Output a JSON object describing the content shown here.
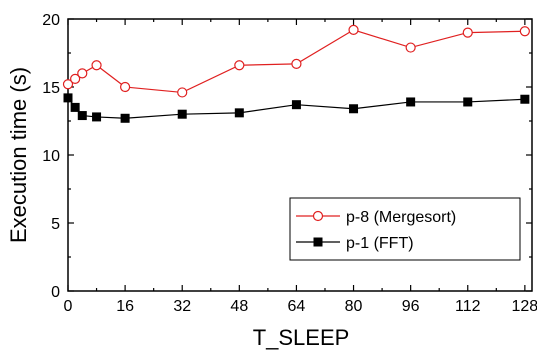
{
  "chart_data": {
    "type": "line",
    "title": "",
    "xlabel": "T_SLEEP",
    "ylabel": "Execution time (s)",
    "xlim": [
      0,
      130
    ],
    "ylim": [
      0,
      20
    ],
    "xticks": [
      0,
      16,
      32,
      48,
      64,
      80,
      96,
      112,
      128
    ],
    "yticks": [
      0,
      5,
      10,
      15,
      20
    ],
    "grid": false,
    "legend_position": "bottom-right",
    "series": [
      {
        "name": "p-8 (Mergesort)",
        "color": "#e02020",
        "marker": "open-circle",
        "x": [
          0,
          2,
          4,
          8,
          16,
          32,
          48,
          64,
          80,
          96,
          112,
          128
        ],
        "y": [
          15.2,
          15.6,
          16.0,
          16.6,
          15.0,
          14.6,
          16.6,
          16.7,
          19.2,
          17.9,
          19.0,
          19.1
        ]
      },
      {
        "name": "p-1 (FFT)",
        "color": "#000000",
        "marker": "filled-square",
        "x": [
          0,
          2,
          4,
          8,
          16,
          32,
          48,
          64,
          80,
          96,
          112,
          128
        ],
        "y": [
          14.2,
          13.5,
          12.9,
          12.8,
          12.7,
          13.0,
          13.1,
          13.7,
          13.4,
          13.9,
          13.9,
          14.1
        ]
      }
    ]
  }
}
